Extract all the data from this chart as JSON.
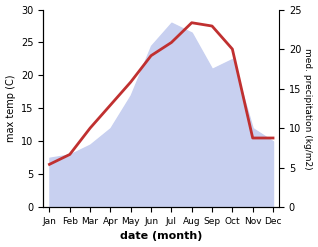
{
  "months": [
    "Jan",
    "Feb",
    "Mar",
    "Apr",
    "May",
    "Jun",
    "Jul",
    "Aug",
    "Sep",
    "Oct",
    "Nov",
    "Dec"
  ],
  "max_temp": [
    6.5,
    8.0,
    12.0,
    15.5,
    19.0,
    23.0,
    25.0,
    28.0,
    27.5,
    24.0,
    10.5,
    10.5
  ],
  "precipitation": [
    7.5,
    8.0,
    9.5,
    12.0,
    17.0,
    24.5,
    28.0,
    26.5,
    21.0,
    22.5,
    12.0,
    10.0
  ],
  "temp_color": "#c03030",
  "precip_fill_color": "#c8d0f0",
  "precip_edge_color": "#c8d0f0",
  "background_color": "#ffffff",
  "xlabel": "date (month)",
  "ylabel_left": "max temp (C)",
  "ylabel_right": "med. precipitation (kg/m2)",
  "ylim_left": [
    0,
    30
  ],
  "ylim_right": [
    0,
    25
  ],
  "yticks_left": [
    0,
    5,
    10,
    15,
    20,
    25,
    30
  ],
  "yticks_right": [
    0,
    5,
    10,
    15,
    20,
    25
  ],
  "temp_linewidth": 2.0,
  "x_positions": [
    0,
    1,
    2,
    3,
    4,
    5,
    6,
    7,
    8,
    9,
    10,
    11
  ]
}
